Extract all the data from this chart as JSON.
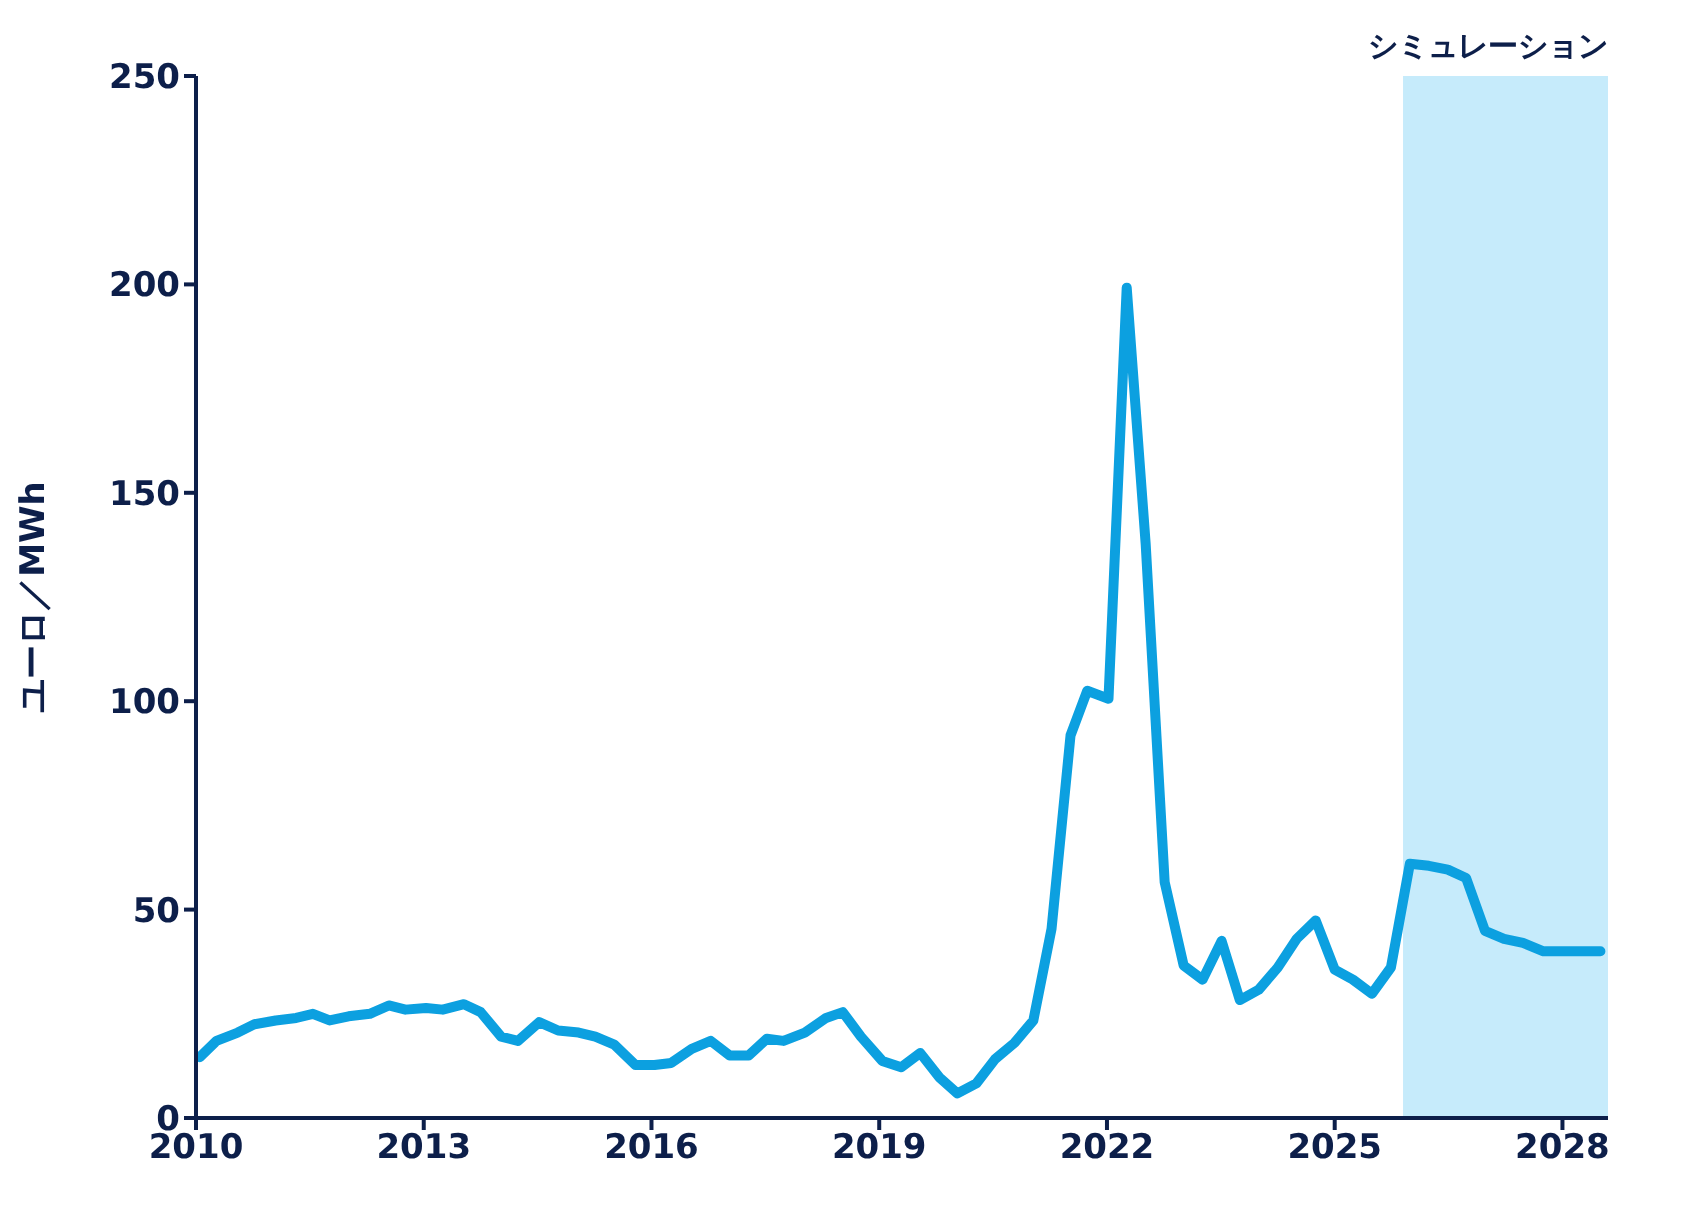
{
  "chart_data": {
    "type": "line",
    "ylabel": "ユーロ／MWh",
    "x": [
      2010.05,
      2010.27,
      2010.55,
      2010.77,
      2011.05,
      2011.32,
      2011.54,
      2011.76,
      2012.01,
      2012.29,
      2012.54,
      2012.76,
      2013.03,
      2013.25,
      2013.53,
      2013.75,
      2014.02,
      2014.24,
      2014.52,
      2014.77,
      2015.04,
      2015.26,
      2015.51,
      2015.79,
      2016.04,
      2016.26,
      2016.53,
      2016.78,
      2017.03,
      2017.28,
      2017.52,
      2017.74,
      2018.02,
      2018.3,
      2018.52,
      2018.76,
      2019.04,
      2019.29,
      2019.54,
      2019.79,
      2020.03,
      2020.28,
      2020.53,
      2020.78,
      2021.03,
      2021.27,
      2021.52,
      2021.74,
      2022.02,
      2022.26,
      2022.51,
      2022.76,
      2023.01,
      2023.26,
      2023.51,
      2023.75,
      2024.0,
      2024.25,
      2024.5,
      2024.75,
      2025.0,
      2025.24,
      2025.49,
      2025.74,
      2025.99,
      2026.24,
      2026.49,
      2026.73,
      2026.98,
      2027.23,
      2027.48,
      2027.75,
      2028.0,
      2028.24,
      2028.5
    ],
    "series": [
      {
        "color": "#0ca0e0",
        "values": [
          14.6,
          18.5,
          20.5,
          22.5,
          23.4,
          24,
          25,
          23.4,
          24.4,
          25,
          27,
          26,
          26.4,
          26,
          27.3,
          25.4,
          19.5,
          18.5,
          23,
          21,
          20.5,
          19.5,
          17.6,
          12.7,
          12.7,
          13.2,
          16.6,
          18.5,
          15,
          15,
          19,
          18.5,
          20.5,
          24,
          25.4,
          19.5,
          13.7,
          12.2,
          15.6,
          9.8,
          5.9,
          8.3,
          14.2,
          18,
          23.4,
          45.4,
          91.8,
          102.5,
          100.6,
          199.2,
          137.7,
          56.6,
          36.6,
          33.2,
          42.5,
          28.3,
          30.8,
          36.1,
          43,
          47.4,
          35.6,
          33.2,
          29.8,
          36.1,
          61,
          60.5,
          59.6,
          57.6,
          44.9,
          43,
          42,
          40,
          40,
          40,
          40
        ]
      }
    ],
    "xlim": [
      2010,
      2028.6
    ],
    "xticks": [
      2010,
      2013,
      2016,
      2019,
      2022,
      2025,
      2028
    ],
    "ylim": [
      0,
      250
    ],
    "yticks": [
      0,
      50,
      100,
      150,
      200,
      250
    ],
    "grid": false,
    "legend": false,
    "marker": "none",
    "line_style": "solid",
    "bands": [
      {
        "axis": "x",
        "from": 2025.9,
        "to": 2028.6,
        "label": "シミュレーション",
        "color": "#c6ebfb"
      }
    ]
  }
}
